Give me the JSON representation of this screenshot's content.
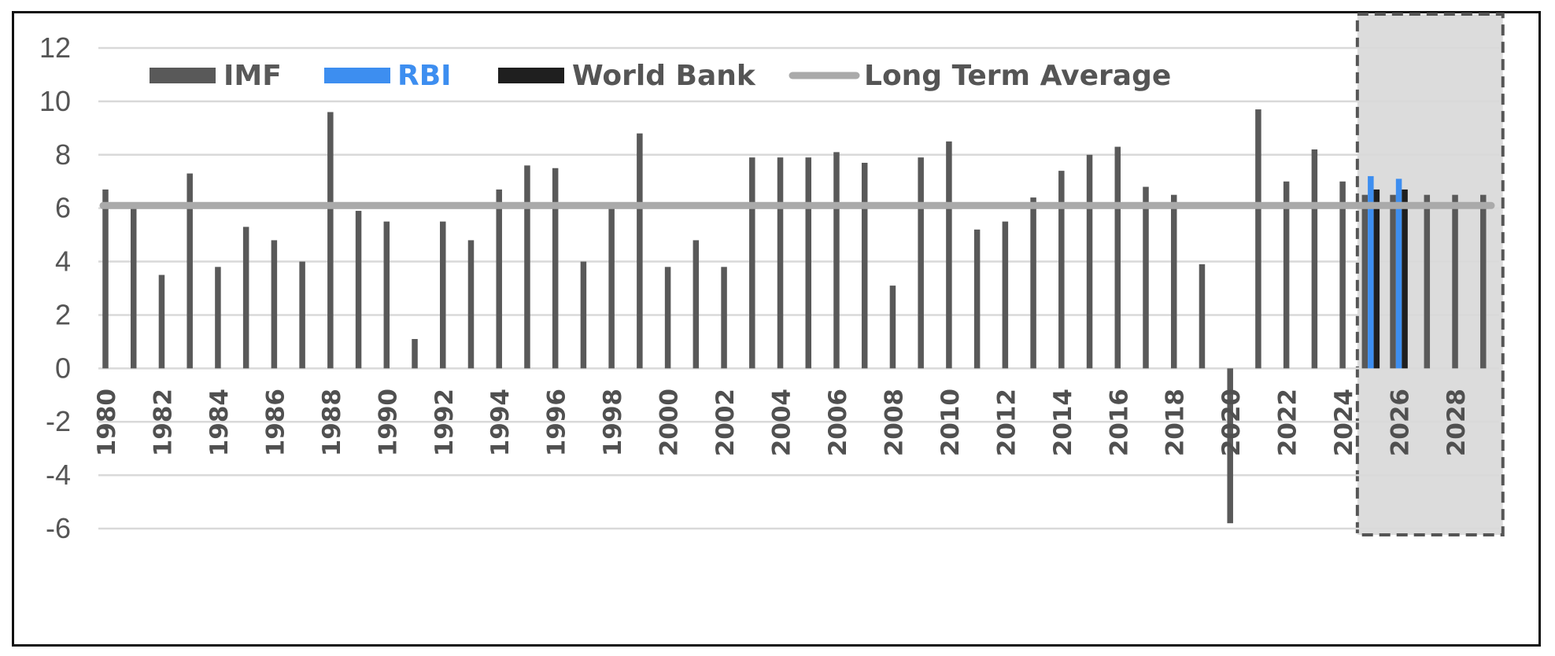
{
  "chart_data": {
    "type": "bar",
    "title": "",
    "xlabel": "",
    "ylabel": "",
    "ylim": [
      -6,
      12
    ],
    "yticks": [
      "12",
      "10",
      "8",
      "6",
      "4",
      "2",
      "0",
      "-2",
      "-4",
      "-6"
    ],
    "grid": true,
    "legend_position": "top-left",
    "highlight": {
      "from": "2025",
      "to": "2029",
      "style": "grey dashed box (forecast)"
    },
    "categories": [
      "1980",
      "1981",
      "1982",
      "1983",
      "1984",
      "1985",
      "1986",
      "1987",
      "1988",
      "1989",
      "1990",
      "1991",
      "1992",
      "1993",
      "1994",
      "1995",
      "1996",
      "1997",
      "1998",
      "1999",
      "2000",
      "2001",
      "2002",
      "2003",
      "2004",
      "2005",
      "2006",
      "2007",
      "2008",
      "2009",
      "2010",
      "2011",
      "2012",
      "2013",
      "2014",
      "2015",
      "2016",
      "2017",
      "2018",
      "2019",
      "2020",
      "2021",
      "2022",
      "2023",
      "2024",
      "2025",
      "2026",
      "2027",
      "2028",
      "2029"
    ],
    "x_tick_labels": [
      "1980",
      "1982",
      "1984",
      "1986",
      "1988",
      "1990",
      "1992",
      "1994",
      "1996",
      "1998",
      "2000",
      "2002",
      "2004",
      "2006",
      "2008",
      "2010",
      "2012",
      "2014",
      "2016",
      "2018",
      "2020",
      "2022",
      "2024",
      "2026",
      "2028"
    ],
    "series": [
      {
        "name": "IMF",
        "color": "#595959",
        "legend_text_color": "#595959",
        "values": [
          6.7,
          6.0,
          3.5,
          7.3,
          3.8,
          5.3,
          4.8,
          4.0,
          9.6,
          5.9,
          5.5,
          1.1,
          5.5,
          4.8,
          6.7,
          7.6,
          7.5,
          4.0,
          6.2,
          8.8,
          3.8,
          4.8,
          3.8,
          7.9,
          7.9,
          7.9,
          8.1,
          7.7,
          3.1,
          7.9,
          8.5,
          5.2,
          5.5,
          6.4,
          7.4,
          8.0,
          8.3,
          6.8,
          6.5,
          3.9,
          -5.8,
          9.7,
          7.0,
          8.2,
          7.0,
          6.5,
          6.5,
          6.5,
          6.5,
          6.5
        ]
      },
      {
        "name": "RBI",
        "color": "#3d8ef0",
        "legend_text_color": "#3d8ef0",
        "values": [
          null,
          null,
          null,
          null,
          null,
          null,
          null,
          null,
          null,
          null,
          null,
          null,
          null,
          null,
          null,
          null,
          null,
          null,
          null,
          null,
          null,
          null,
          null,
          null,
          null,
          null,
          null,
          null,
          null,
          null,
          null,
          null,
          null,
          null,
          null,
          null,
          null,
          null,
          null,
          null,
          null,
          null,
          null,
          null,
          null,
          7.2,
          7.1,
          null,
          null,
          null
        ]
      },
      {
        "name": "World Bank",
        "color": "#1f1f1f",
        "legend_text_color": "#555555",
        "values": [
          null,
          null,
          null,
          null,
          null,
          null,
          null,
          null,
          null,
          null,
          null,
          null,
          null,
          null,
          null,
          null,
          null,
          null,
          null,
          null,
          null,
          null,
          null,
          null,
          null,
          null,
          null,
          null,
          null,
          null,
          null,
          null,
          null,
          null,
          null,
          null,
          null,
          null,
          null,
          null,
          null,
          null,
          null,
          null,
          null,
          6.7,
          6.7,
          null,
          null,
          null
        ]
      }
    ],
    "reference_lines": [
      {
        "name": "Long Term Average",
        "type": "line",
        "value": 6.1,
        "color": "#aaaaaa",
        "legend_text_color": "#555555"
      }
    ]
  }
}
